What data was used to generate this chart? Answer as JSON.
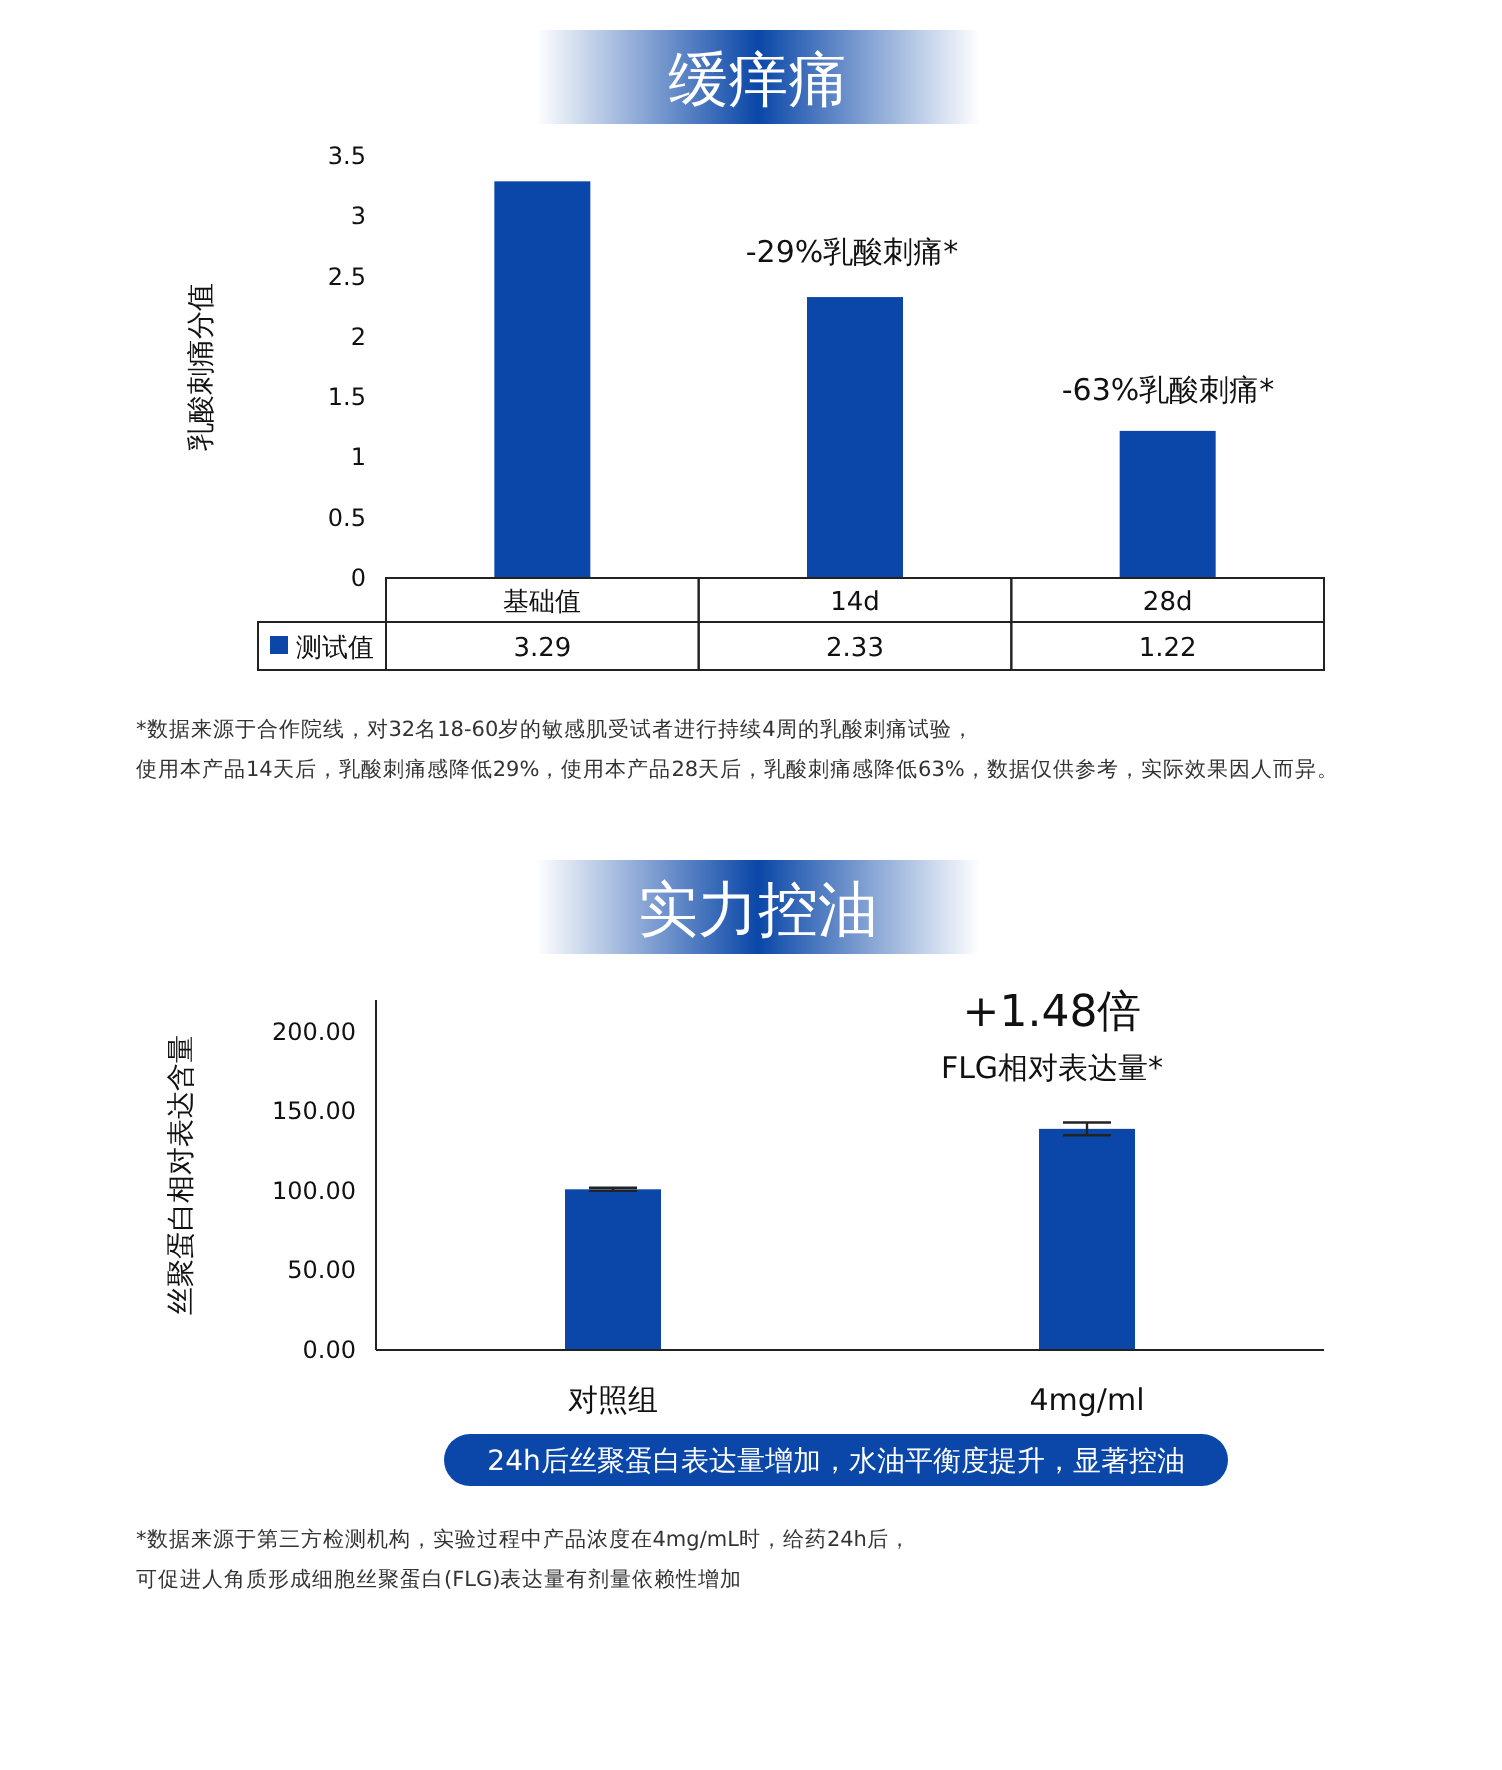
{
  "chart_data": [
    {
      "type": "bar",
      "title": "缓痒痛",
      "ylabel": "乳酸刺痛分值",
      "categories": [
        "基础值",
        "14d",
        "28d"
      ],
      "series": [
        {
          "name": "测试值",
          "color": "#0a47a8",
          "values": [
            3.29,
            2.33,
            1.22
          ]
        }
      ],
      "ylim": [
        0,
        3.5
      ],
      "yticks": [
        0,
        0.5,
        1,
        1.5,
        2,
        2.5,
        3,
        3.5
      ],
      "data_labels": true,
      "legend": "bottom",
      "grid": false,
      "annotations": [
        "-29%乳酸刺痛*",
        "-63%乳酸刺痛*",
        "*数据来源于合作院线，对32名18-60岁的敏感肌受试者进行持续4周的乳酸刺痛试验，",
        "使用本产品14天后，乳酸刺痛感降低29%，使用本产品28天后，乳酸刺痛感降低63%，数据仅供参考，实际效果因人而异。"
      ]
    },
    {
      "type": "bar",
      "title": "实力控油",
      "ylabel": "丝聚蛋白相对表达含量",
      "categories": [
        "对照组",
        "4mg/ml"
      ],
      "values": [
        101,
        139
      ],
      "errors": [
        1,
        4
      ],
      "color": "#0a47a8",
      "ylim": [
        0,
        220
      ],
      "yticks": [
        {
          "value": 0,
          "label": "0.00"
        },
        {
          "value": 50,
          "label": "50.00"
        },
        {
          "value": 100,
          "label": "100.00"
        },
        {
          "value": 150,
          "label": "150.00"
        },
        {
          "value": 200,
          "label": "200.00"
        }
      ],
      "grid": false,
      "annotations": [
        "+1.48倍",
        "FLG相对表达量*",
        "24h后丝聚蛋白表达量增加，水油平衡度提升，显著控油",
        "*数据来源于第三方检测机构，实验过程中产品浓度在4mg/mL时，给药24h后，",
        "可促进人角质形成细胞丝聚蛋白(FLG)表达量有剂量依赖性增加"
      ]
    }
  ]
}
